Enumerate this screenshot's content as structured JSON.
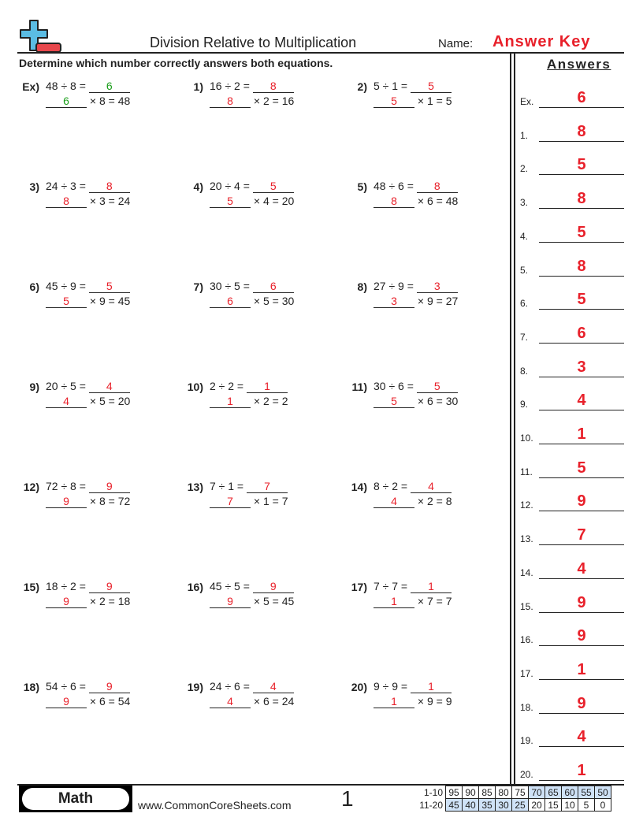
{
  "header": {
    "title": "Division Relative to Multiplication",
    "name_label": "Name:",
    "answer_key": "Answer Key",
    "instructions": "Determine which number correctly answers both equations."
  },
  "colors": {
    "answer": "#e8202a",
    "example": "#1a9e1a",
    "logo_blue": "#5bbde4",
    "logo_red": "#e8474c",
    "score_highlight": "#cfe2f7"
  },
  "logo_icon": "plus-minus-icon",
  "problems": [
    {
      "label": "Ex)",
      "division": "48 ÷ 8 =",
      "answer": "6",
      "multiplication": "× 8 = 48"
    },
    {
      "label": "1)",
      "division": "16 ÷ 2 =",
      "answer": "8",
      "multiplication": "× 2 = 16"
    },
    {
      "label": "2)",
      "division": "5 ÷ 1 =",
      "answer": "5",
      "multiplication": "× 1 = 5"
    },
    {
      "label": "3)",
      "division": "24 ÷ 3 =",
      "answer": "8",
      "multiplication": "× 3 = 24"
    },
    {
      "label": "4)",
      "division": "20 ÷ 4 =",
      "answer": "5",
      "multiplication": "× 4 = 20"
    },
    {
      "label": "5)",
      "division": "48 ÷ 6 =",
      "answer": "8",
      "multiplication": "× 6 = 48"
    },
    {
      "label": "6)",
      "division": "45 ÷ 9 =",
      "answer": "5",
      "multiplication": "× 9 = 45"
    },
    {
      "label": "7)",
      "division": "30 ÷ 5 =",
      "answer": "6",
      "multiplication": "× 5 = 30"
    },
    {
      "label": "8)",
      "division": "27 ÷ 9 =",
      "answer": "3",
      "multiplication": "× 9 = 27"
    },
    {
      "label": "9)",
      "division": "20 ÷ 5 =",
      "answer": "4",
      "multiplication": "× 5 = 20"
    },
    {
      "label": "10)",
      "division": "2 ÷ 2 =",
      "answer": "1",
      "multiplication": "× 2 = 2"
    },
    {
      "label": "11)",
      "division": "30 ÷ 6 =",
      "answer": "5",
      "multiplication": "× 6 = 30"
    },
    {
      "label": "12)",
      "division": "72 ÷ 8 =",
      "answer": "9",
      "multiplication": "× 8 = 72"
    },
    {
      "label": "13)",
      "division": "7 ÷ 1 =",
      "answer": "7",
      "multiplication": "× 1 = 7"
    },
    {
      "label": "14)",
      "division": "8 ÷ 2 =",
      "answer": "4",
      "multiplication": "× 2 = 8"
    },
    {
      "label": "15)",
      "division": "18 ÷ 2 =",
      "answer": "9",
      "multiplication": "× 2 = 18"
    },
    {
      "label": "16)",
      "division": "45 ÷ 5 =",
      "answer": "9",
      "multiplication": "× 5 = 45"
    },
    {
      "label": "17)",
      "division": "7 ÷ 7 =",
      "answer": "1",
      "multiplication": "× 7 = 7"
    },
    {
      "label": "18)",
      "division": "54 ÷ 6 =",
      "answer": "9",
      "multiplication": "× 6 = 54"
    },
    {
      "label": "19)",
      "division": "24 ÷ 6 =",
      "answer": "4",
      "multiplication": "× 6 = 24"
    },
    {
      "label": "20)",
      "division": "9 ÷ 9 =",
      "answer": "1",
      "multiplication": "× 9 = 9"
    }
  ],
  "answers": {
    "title": "Answers",
    "items": [
      {
        "label": "Ex.",
        "value": "6"
      },
      {
        "label": "1.",
        "value": "8"
      },
      {
        "label": "2.",
        "value": "5"
      },
      {
        "label": "3.",
        "value": "8"
      },
      {
        "label": "4.",
        "value": "5"
      },
      {
        "label": "5.",
        "value": "8"
      },
      {
        "label": "6.",
        "value": "5"
      },
      {
        "label": "7.",
        "value": "6"
      },
      {
        "label": "8.",
        "value": "3"
      },
      {
        "label": "9.",
        "value": "4"
      },
      {
        "label": "10.",
        "value": "1"
      },
      {
        "label": "11.",
        "value": "5"
      },
      {
        "label": "12.",
        "value": "9"
      },
      {
        "label": "13.",
        "value": "7"
      },
      {
        "label": "14.",
        "value": "4"
      },
      {
        "label": "15.",
        "value": "9"
      },
      {
        "label": "16.",
        "value": "9"
      },
      {
        "label": "17.",
        "value": "1"
      },
      {
        "label": "18.",
        "value": "9"
      },
      {
        "label": "19.",
        "value": "4"
      },
      {
        "label": "20.",
        "value": "1"
      }
    ]
  },
  "footer": {
    "subject": "Math",
    "website": "www.CommonCoreSheets.com",
    "page_number": "1",
    "score_rows": [
      {
        "label": "1-10",
        "values": [
          "95",
          "90",
          "85",
          "80",
          "75",
          "70",
          "65",
          "60",
          "55",
          "50"
        ],
        "highlighted": [
          false,
          false,
          false,
          false,
          false,
          true,
          true,
          true,
          true,
          true
        ]
      },
      {
        "label": "11-20",
        "values": [
          "45",
          "40",
          "35",
          "30",
          "25",
          "20",
          "15",
          "10",
          "5",
          "0"
        ],
        "highlighted": [
          true,
          true,
          true,
          true,
          true,
          false,
          false,
          false,
          false,
          false
        ]
      }
    ]
  }
}
